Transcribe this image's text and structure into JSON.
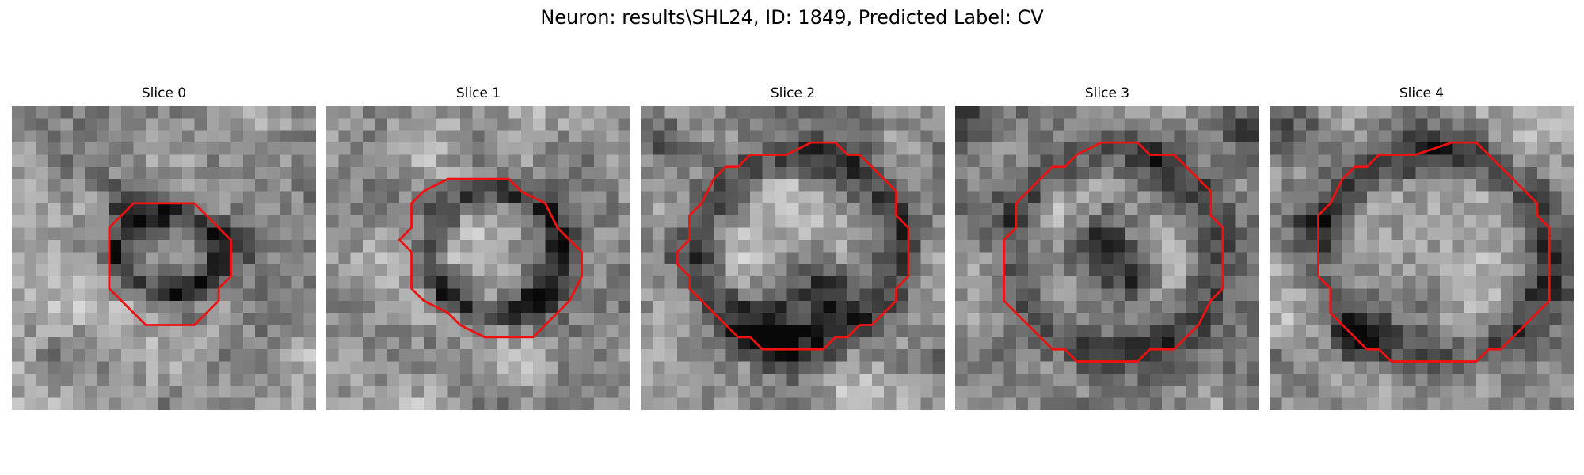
{
  "title": "Neuron: results\\SHL24, ID: 1849, Predicted Label: CV",
  "contour_color": "#ee1111",
  "slices": [
    {
      "label": "Slice 0",
      "seed": 11,
      "contour": [
        [
          13,
          8
        ],
        [
          15,
          8
        ],
        [
          17,
          10
        ],
        [
          18,
          11
        ],
        [
          18,
          14
        ],
        [
          17,
          15
        ],
        [
          17,
          16
        ],
        [
          16,
          17
        ],
        [
          15,
          18
        ],
        [
          12,
          18
        ],
        [
          11,
          18
        ],
        [
          9,
          16
        ],
        [
          8,
          15
        ],
        [
          8,
          12
        ],
        [
          8,
          10
        ],
        [
          9,
          9
        ],
        [
          10,
          8
        ]
      ],
      "dark_ring": [
        [
          13,
          12
        ],
        [
          4.2,
          3.2
        ]
      ],
      "dark_blobs": [
        [
          12,
          9,
          2.5
        ],
        [
          9,
          8,
          1.5
        ],
        [
          19,
          11,
          2.5
        ],
        [
          14,
          16,
          2.5
        ]
      ]
    },
    {
      "label": "Slice 1",
      "seed": 23,
      "contour": [
        [
          11,
          6
        ],
        [
          15,
          6
        ],
        [
          16,
          7
        ],
        [
          18,
          8
        ],
        [
          19,
          10
        ],
        [
          20,
          11
        ],
        [
          21,
          12
        ],
        [
          21,
          14
        ],
        [
          20,
          16
        ],
        [
          19,
          17
        ],
        [
          18,
          18
        ],
        [
          17,
          19
        ],
        [
          15,
          19
        ],
        [
          13,
          19
        ],
        [
          11,
          18
        ],
        [
          10,
          17
        ],
        [
          8,
          16
        ],
        [
          7,
          15
        ],
        [
          7,
          12
        ],
        [
          6,
          11
        ],
        [
          7,
          10
        ],
        [
          7,
          8
        ],
        [
          8,
          7
        ],
        [
          10,
          6
        ]
      ],
      "dark_ring": [
        [
          14,
          12
        ],
        [
          5.5,
          5
        ]
      ],
      "dark_blobs": [
        [
          17,
          16,
          2.5
        ],
        [
          19,
          12,
          2.0
        ],
        [
          10,
          15,
          2.0
        ]
      ]
    },
    {
      "label": "Slice 2",
      "seed": 37,
      "contour": [
        [
          9,
          4
        ],
        [
          12,
          4
        ],
        [
          14,
          3
        ],
        [
          16,
          3
        ],
        [
          17,
          4
        ],
        [
          18,
          4
        ],
        [
          19,
          5
        ],
        [
          20,
          6
        ],
        [
          21,
          7
        ],
        [
          21,
          9
        ],
        [
          22,
          10
        ],
        [
          22,
          14
        ],
        [
          21,
          15
        ],
        [
          21,
          16
        ],
        [
          20,
          17
        ],
        [
          19,
          18
        ],
        [
          18,
          18
        ],
        [
          17,
          19
        ],
        [
          16,
          19
        ],
        [
          15,
          20
        ],
        [
          10,
          20
        ],
        [
          9,
          19
        ],
        [
          8,
          19
        ],
        [
          7,
          18
        ],
        [
          6,
          17
        ],
        [
          5,
          16
        ],
        [
          4,
          15
        ],
        [
          4,
          14
        ],
        [
          3,
          13
        ],
        [
          3,
          12
        ],
        [
          4,
          11
        ],
        [
          4,
          9
        ],
        [
          5,
          8
        ],
        [
          6,
          6
        ],
        [
          7,
          5
        ],
        [
          8,
          5
        ]
      ],
      "dark_ring": [
        [
          13,
          12
        ],
        [
          8.5,
          8
        ]
      ],
      "dark_blobs": [
        [
          13,
          16,
          3.5
        ],
        [
          11,
          18,
          2.5
        ],
        [
          16,
          15,
          2.5
        ],
        [
          2,
          3,
          2.0
        ]
      ]
    },
    {
      "label": "Slice 3",
      "seed": 53,
      "contour": [
        [
          10,
          4
        ],
        [
          12,
          3
        ],
        [
          15,
          3
        ],
        [
          16,
          4
        ],
        [
          18,
          4
        ],
        [
          19,
          5
        ],
        [
          20,
          6
        ],
        [
          21,
          7
        ],
        [
          21,
          9
        ],
        [
          22,
          10
        ],
        [
          22,
          13
        ],
        [
          22,
          15
        ],
        [
          21,
          16
        ],
        [
          20,
          18
        ],
        [
          19,
          19
        ],
        [
          18,
          20
        ],
        [
          16,
          20
        ],
        [
          15,
          21
        ],
        [
          10,
          21
        ],
        [
          9,
          20
        ],
        [
          8,
          20
        ],
        [
          7,
          19
        ],
        [
          6,
          18
        ],
        [
          5,
          17
        ],
        [
          4,
          16
        ],
        [
          4,
          11
        ],
        [
          5,
          10
        ],
        [
          5,
          8
        ],
        [
          6,
          7
        ],
        [
          7,
          6
        ],
        [
          8,
          5
        ],
        [
          9,
          5
        ]
      ],
      "dark_ring": [
        [
          13,
          12
        ],
        [
          8.5,
          8.5
        ]
      ],
      "dark_blobs": [
        [
          13,
          13,
          2.5
        ],
        [
          15,
          14,
          2.0
        ],
        [
          12,
          11,
          2.0
        ],
        [
          1,
          1,
          2.0
        ],
        [
          24,
          2,
          2.0
        ]
      ]
    },
    {
      "label": "Slice 4",
      "seed": 71,
      "contour": [
        [
          9,
          4
        ],
        [
          12,
          4
        ],
        [
          15,
          3
        ],
        [
          17,
          3
        ],
        [
          18,
          4
        ],
        [
          19,
          5
        ],
        [
          20,
          6
        ],
        [
          21,
          7
        ],
        [
          22,
          8
        ],
        [
          22,
          9
        ],
        [
          23,
          10
        ],
        [
          23,
          16
        ],
        [
          22,
          17
        ],
        [
          21,
          18
        ],
        [
          20,
          19
        ],
        [
          19,
          20
        ],
        [
          18,
          20
        ],
        [
          17,
          21
        ],
        [
          10,
          21
        ],
        [
          9,
          20
        ],
        [
          8,
          20
        ],
        [
          7,
          19
        ],
        [
          6,
          18
        ],
        [
          5,
          17
        ],
        [
          5,
          15
        ],
        [
          4,
          14
        ],
        [
          4,
          9
        ],
        [
          5,
          8
        ],
        [
          6,
          6
        ],
        [
          7,
          5
        ],
        [
          8,
          5
        ]
      ],
      "dark_ring": [
        [
          13.5,
          12
        ],
        [
          9.5,
          8.5
        ]
      ],
      "dark_blobs": [
        [
          2,
          2,
          3.0
        ],
        [
          7,
          19,
          2.0
        ],
        [
          4,
          10,
          2.0
        ]
      ]
    }
  ]
}
